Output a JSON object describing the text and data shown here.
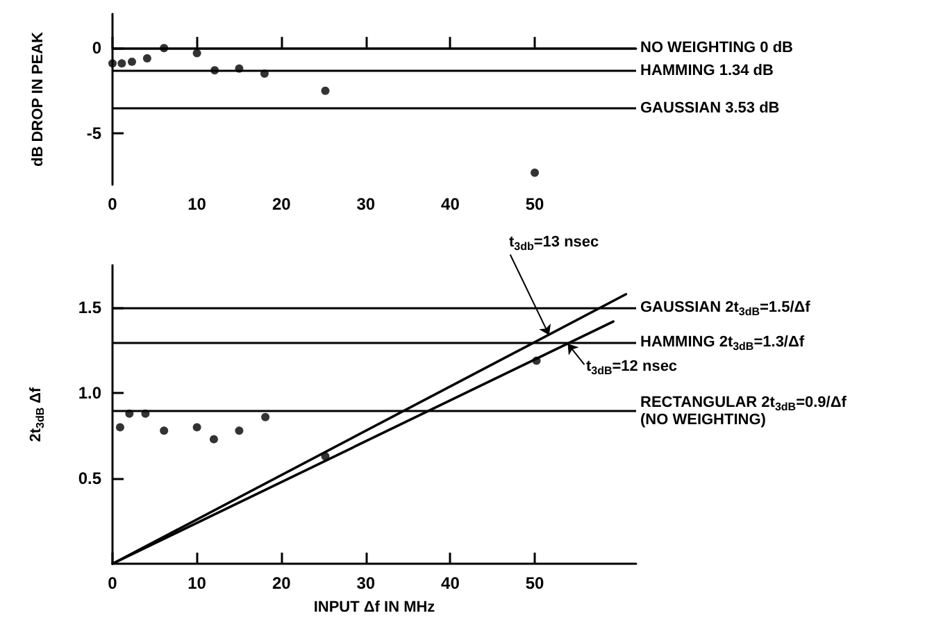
{
  "chart_data": [
    {
      "type": "scatter",
      "ylabel": "dB DROP IN PEAK",
      "marker": "circle",
      "xlim": [
        0,
        62
      ],
      "xticks": [
        0,
        10,
        20,
        30,
        40,
        50
      ],
      "ylim": [
        -8,
        2
      ],
      "yticks": [
        -5,
        0
      ],
      "series": [
        {
          "color": "#000000",
          "x": [
            0,
            1.1,
            2.3,
            4.1,
            6.1,
            10,
            12.1,
            15,
            18,
            25.2,
            50
          ],
          "values": [
            -0.9,
            -0.9,
            -0.8,
            -0.6,
            0,
            -0.3,
            -1.3,
            -1.2,
            -1.5,
            -2.5,
            -7.3
          ]
        }
      ],
      "ref_lines": [
        {
          "axis": "y",
          "value": 0,
          "label": "NO WEIGHTING 0 dB"
        },
        {
          "axis": "y",
          "value": -1.34,
          "label": "HAMMING 1.34 dB"
        },
        {
          "axis": "y",
          "value": -3.53,
          "label": "GAUSSIAN 3.53 dB"
        }
      ]
    },
    {
      "type": "scatter",
      "xlabel": "INPUT Δf IN MHz",
      "ylabel": "2t$_{3dB}$ Δf",
      "marker": "circle",
      "xlim": [
        0,
        62
      ],
      "xticks": [
        0,
        10,
        20,
        30,
        40,
        50
      ],
      "ylim": [
        0,
        1.75
      ],
      "yticks": [
        0.5,
        {
          "value": 1,
          "label": "1.0"
        },
        1.5
      ],
      "series": [
        {
          "color": "#000000",
          "x": [
            0.9,
            2,
            3.9,
            6.1,
            10,
            12,
            15,
            18.1,
            25.2,
            50.2
          ],
          "values": [
            0.8,
            0.88,
            0.88,
            0.78,
            0.8,
            0.73,
            0.78,
            0.86,
            0.63,
            1.19
          ]
        },
        {
          "type": "line",
          "marker": "none",
          "color": "#000000",
          "x": [
            0,
            60.8
          ],
          "values": [
            0,
            1.58
          ]
        },
        {
          "type": "line",
          "marker": "none",
          "color": "#000000",
          "x": [
            0,
            59.3
          ],
          "values": [
            0,
            1.42
          ]
        }
      ],
      "ref_lines": [
        {
          "axis": "y",
          "value": 1.5,
          "label": "GAUSSIAN 2t$_{3dB}$=1.5/Δf"
        },
        {
          "axis": "y",
          "value": 1.3,
          "label": "HAMMING 2t$_{3dB}$=1.3/Δf"
        },
        {
          "axis": "y",
          "value": 0.9,
          "label": "RECTANGULAR 2t$_{3dB}$=0.9/Δf\n(NO WEIGHTING)"
        }
      ],
      "annotations": [
        {
          "text": "t$_{3db}$=13 nsec",
          "x": 51.7,
          "y": 1.34
        },
        {
          "text": "t$_{3dB}$=12 nsec",
          "x": 53.9,
          "y": 1.29
        }
      ]
    }
  ]
}
